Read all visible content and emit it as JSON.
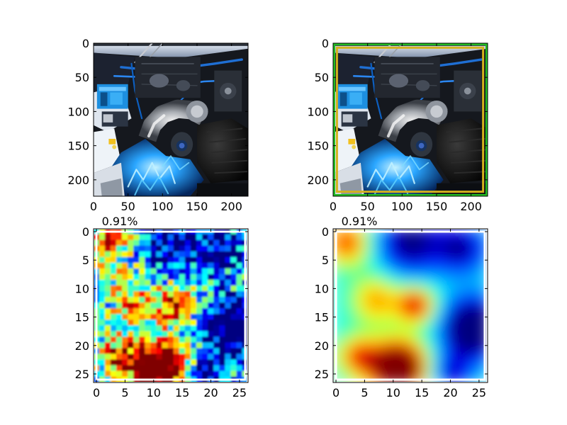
{
  "figure": {
    "background": "#ffffff",
    "axis_color": "#000000"
  },
  "chart_data": [
    {
      "type": "image",
      "subject": "car engine bay photo",
      "title": "",
      "xlabel": "",
      "ylabel": "",
      "xlim": [
        0,
        224
      ],
      "ylim": [
        224,
        0
      ],
      "xticks": [
        0,
        50,
        100,
        150,
        200
      ],
      "yticks": [
        0,
        50,
        100,
        150,
        200
      ],
      "grid": false
    },
    {
      "type": "image",
      "subject": "car engine bay photo with bounding boxes",
      "title": "",
      "xlabel": "",
      "ylabel": "",
      "xlim": [
        0,
        224
      ],
      "ylim": [
        224,
        0
      ],
      "xticks": [
        0,
        50,
        100,
        150,
        200
      ],
      "yticks": [
        0,
        50,
        100,
        150,
        200
      ],
      "grid": false,
      "boxes": [
        {
          "x0": 0,
          "y0": 0,
          "x1": 224,
          "y1": 224,
          "color": "#22bb22"
        },
        {
          "x0": 4,
          "y0": 5,
          "x1": 219,
          "y1": 219,
          "color": "#d4b11c"
        }
      ]
    },
    {
      "type": "heatmap",
      "title": "0.91%",
      "xlabel": "",
      "ylabel": "",
      "xlim": [
        -0.5,
        26.5
      ],
      "ylim": [
        26.5,
        -0.5
      ],
      "xticks": [
        0,
        5,
        10,
        15,
        20,
        25
      ],
      "yticks": [
        0,
        5,
        10,
        15,
        20,
        25
      ],
      "colormap": "jet",
      "interpolation": "nearest",
      "grid": false,
      "box": {
        "x0": 0,
        "y0": 0,
        "x1": 26,
        "y1": 26,
        "color": "#ffffff"
      }
    },
    {
      "type": "heatmap",
      "title": "0.91%",
      "xlabel": "",
      "ylabel": "",
      "xlim": [
        -0.5,
        26.5
      ],
      "ylim": [
        26.5,
        -0.5
      ],
      "xticks": [
        0,
        5,
        10,
        15,
        20,
        25
      ],
      "yticks": [
        0,
        5,
        10,
        15,
        20,
        25
      ],
      "colormap": "jet",
      "interpolation": "smooth",
      "grid": false,
      "box": {
        "x0": 0,
        "y0": 0,
        "x1": 26,
        "y1": 26,
        "color": "#ffffff"
      }
    }
  ]
}
